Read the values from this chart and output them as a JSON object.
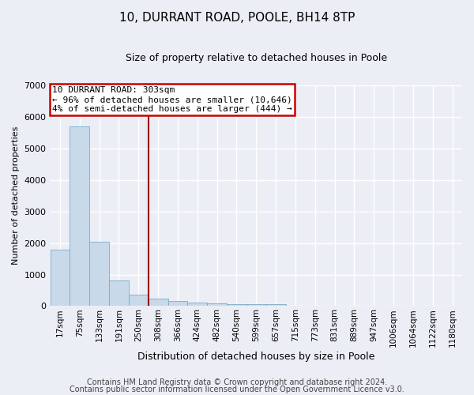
{
  "title": "10, DURRANT ROAD, POOLE, BH14 8TP",
  "subtitle": "Size of property relative to detached houses in Poole",
  "xlabel": "Distribution of detached houses by size in Poole",
  "ylabel": "Number of detached properties",
  "bar_color": "#c8daea",
  "bar_edge_color": "#7aaac8",
  "categories": [
    "17sqm",
    "75sqm",
    "133sqm",
    "191sqm",
    "250sqm",
    "308sqm",
    "366sqm",
    "424sqm",
    "482sqm",
    "540sqm",
    "599sqm",
    "657sqm",
    "715sqm",
    "773sqm",
    "831sqm",
    "889sqm",
    "947sqm",
    "1006sqm",
    "1064sqm",
    "1122sqm",
    "1180sqm"
  ],
  "values": [
    1780,
    5700,
    2050,
    800,
    370,
    240,
    160,
    100,
    90,
    55,
    50,
    55,
    0,
    0,
    0,
    0,
    0,
    0,
    0,
    0,
    0
  ],
  "vline_index": 5,
  "annotation_line1": "10 DURRANT ROAD: 303sqm",
  "annotation_line2": "← 96% of detached houses are smaller (10,646)",
  "annotation_line3": "4% of semi-detached houses are larger (444) →",
  "annotation_box_color": "#ffffff",
  "annotation_box_edge": "#cc0000",
  "vline_color": "#990000",
  "footer1": "Contains HM Land Registry data © Crown copyright and database right 2024.",
  "footer2": "Contains public sector information licensed under the Open Government Licence v3.0.",
  "ylim_max": 7000,
  "yticks": [
    0,
    1000,
    2000,
    3000,
    4000,
    5000,
    6000,
    7000
  ],
  "bg_color": "#eceef5",
  "grid_color": "#ffffff",
  "title_fontsize": 11,
  "subtitle_fontsize": 9,
  "ylabel_fontsize": 8,
  "xlabel_fontsize": 9,
  "tick_fontsize": 8,
  "xtick_fontsize": 7.5,
  "annotation_fontsize": 8,
  "footer_fontsize": 7
}
